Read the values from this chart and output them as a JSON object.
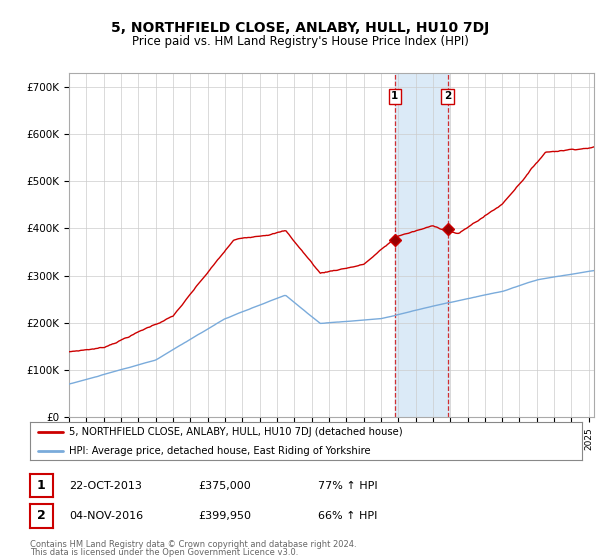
{
  "title": "5, NORTHFIELD CLOSE, ANLABY, HULL, HU10 7DJ",
  "subtitle": "Price paid vs. HM Land Registry's House Price Index (HPI)",
  "title_fontsize": 10,
  "subtitle_fontsize": 8.5,
  "ylabel_ticks": [
    "£0",
    "£100K",
    "£200K",
    "£300K",
    "£400K",
    "£500K",
    "£600K",
    "£700K"
  ],
  "ytick_values": [
    0,
    100000,
    200000,
    300000,
    400000,
    500000,
    600000,
    700000
  ],
  "ylim": [
    0,
    730000
  ],
  "xlim_start": 1995.0,
  "xlim_end": 2025.3,
  "property_color": "#cc0000",
  "hpi_color": "#7aabdb",
  "highlight_color": "#dbeaf7",
  "highlight_x1": 2013.8,
  "highlight_x2": 2016.95,
  "transaction1_x": 2013.8,
  "transaction1_y": 375000,
  "transaction2_x": 2016.85,
  "transaction2_y": 399950,
  "legend_label1": "5, NORTHFIELD CLOSE, ANLABY, HULL, HU10 7DJ (detached house)",
  "legend_label2": "HPI: Average price, detached house, East Riding of Yorkshire",
  "table_row1": [
    "1",
    "22-OCT-2013",
    "£375,000",
    "77% ↑ HPI"
  ],
  "table_row2": [
    "2",
    "04-NOV-2016",
    "£399,950",
    "66% ↑ HPI"
  ],
  "footer1": "Contains HM Land Registry data © Crown copyright and database right 2024.",
  "footer2": "This data is licensed under the Open Government Licence v3.0.",
  "background_color": "#ffffff",
  "grid_color": "#cccccc"
}
